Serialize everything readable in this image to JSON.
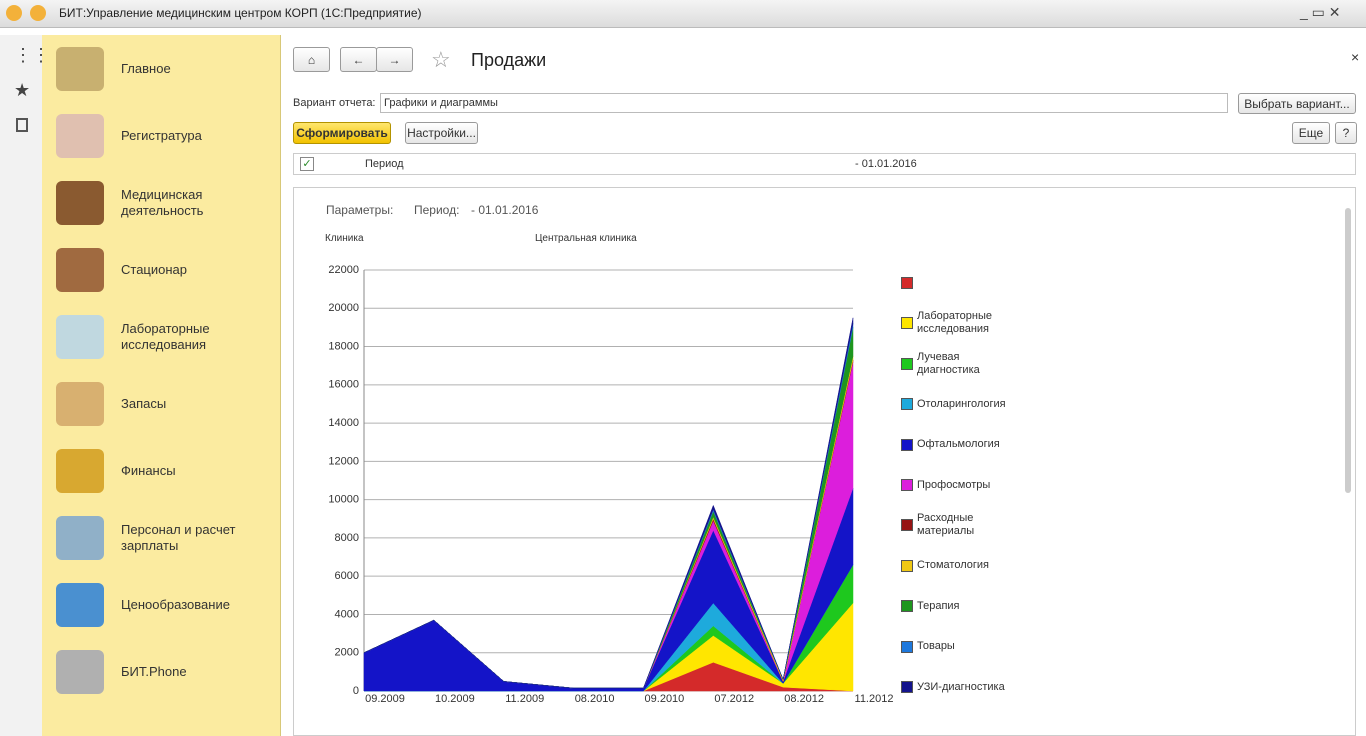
{
  "window": {
    "title": "БИТ:Управление медицинским центром КОРП  (1С:Предприятие)"
  },
  "sidebar": {
    "items": [
      "Главное",
      "Регистратура",
      "Медицинская деятельность",
      "Стационар",
      "Лабораторные исследования",
      "Запасы",
      "Финансы",
      "Персонал и расчет зарплаты",
      "Ценообразование",
      "БИТ.Phone"
    ]
  },
  "form": {
    "title": "Продажи",
    "variant_label": "Вариант отчета:",
    "variant_value": "Графики и диаграммы",
    "choose_button": "Выбрать вариант...",
    "generate_button": "Сформировать",
    "settings_button": "Настройки...",
    "more_button": "Еще",
    "help_button": "?",
    "period_label": "Период",
    "period_value": "- 01.01.2016"
  },
  "report": {
    "params_label": "Параметры:",
    "period_label": "Период:",
    "period_value": "- 01.01.2016",
    "clinic_label": "Клиника",
    "clinic_value": "Центральная клиника"
  },
  "chart_data": {
    "type": "stacked-area",
    "categories": [
      "09.2009",
      "10.2009",
      "11.2009",
      "08.2010",
      "09.2010",
      "07.2012",
      "08.2012",
      "11.2012"
    ],
    "ylim": [
      0,
      22000
    ],
    "yticks": [
      0,
      2000,
      4000,
      6000,
      8000,
      10000,
      12000,
      14000,
      16000,
      18000,
      20000,
      22000
    ],
    "grid": true,
    "series": [
      {
        "name": null,
        "color": "#d42a2a",
        "values": [
          0,
          0,
          0,
          0,
          0,
          1500,
          200,
          0
        ]
      },
      {
        "name": "Лабораторные исследования",
        "color": "#ffe600",
        "values": [
          0,
          0,
          0,
          0,
          0,
          1400,
          200,
          4600
        ]
      },
      {
        "name": "Лучевая диагностика",
        "color": "#1ec81e",
        "values": [
          0,
          0,
          0,
          0,
          0,
          500,
          0,
          2000
        ]
      },
      {
        "name": "Отоларингология",
        "color": "#1eaadc",
        "values": [
          0,
          0,
          0,
          0,
          0,
          1200,
          0,
          0
        ]
      },
      {
        "name": "Офтальмология",
        "color": "#1414c8",
        "values": [
          2000,
          3700,
          500,
          150,
          150,
          3800,
          100,
          4000
        ]
      },
      {
        "name": "Профосмотры",
        "color": "#dc1edc",
        "values": [
          0,
          0,
          0,
          0,
          0,
          500,
          0,
          6600
        ]
      },
      {
        "name": "Расходные материалы",
        "color": "#961414",
        "values": [
          0,
          0,
          0,
          0,
          0,
          100,
          0,
          100
        ]
      },
      {
        "name": "Стоматология",
        "color": "#f0c814",
        "values": [
          0,
          0,
          0,
          0,
          0,
          100,
          100,
          200
        ]
      },
      {
        "name": "Терапия",
        "color": "#1e961e",
        "values": [
          0,
          0,
          0,
          0,
          0,
          300,
          0,
          1500
        ]
      },
      {
        "name": "Товары",
        "color": "#1e78dc",
        "values": [
          0,
          0,
          0,
          0,
          0,
          100,
          0,
          200
        ]
      },
      {
        "name": "УЗИ-диагностика",
        "color": "#14148c",
        "values": [
          0,
          0,
          0,
          0,
          0,
          200,
          0,
          300
        ]
      }
    ]
  }
}
